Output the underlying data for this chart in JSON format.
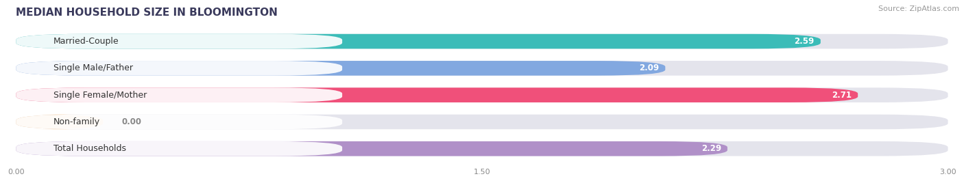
{
  "title": "MEDIAN HOUSEHOLD SIZE IN BLOOMINGTON",
  "source": "Source: ZipAtlas.com",
  "categories": [
    "Married-Couple",
    "Single Male/Father",
    "Single Female/Mother",
    "Non-family",
    "Total Households"
  ],
  "values": [
    2.59,
    2.09,
    2.71,
    0.0,
    2.29
  ],
  "bar_colors": [
    "#3bbcb8",
    "#82a8e0",
    "#f0507a",
    "#f5c898",
    "#b090c8"
  ],
  "xlim_max": 3.0,
  "xtick_labels": [
    "0.00",
    "1.50",
    "3.00"
  ],
  "xtick_vals": [
    0.0,
    1.5,
    3.0
  ],
  "background_color": "#f5f5f7",
  "bar_bg_color": "#e4e4ec",
  "title_fontsize": 11,
  "source_fontsize": 8,
  "label_fontsize": 9,
  "value_fontsize": 8.5
}
